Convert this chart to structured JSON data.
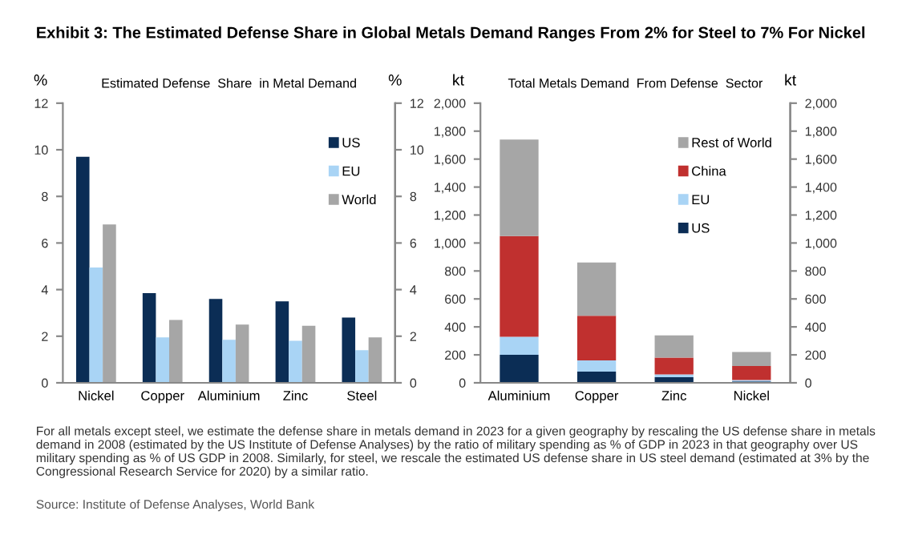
{
  "chart_data": [
    {
      "type": "bar",
      "title": "Exhibit 3: The Estimated Defense Share in Global Metals Demand Ranges From 2% for Steel to 7% For Nickel",
      "subtitle": "Estimated Defense  Share  in Metal Demand",
      "ylabel": "%",
      "y2label": "%",
      "categories": [
        "Nickel",
        "Copper",
        "Aluminium",
        "Zinc",
        "Steel"
      ],
      "series": [
        {
          "name": "US",
          "color": "#0b2d55",
          "values": [
            9.7,
            3.85,
            3.6,
            3.5,
            2.8
          ]
        },
        {
          "name": "EU",
          "color": "#a9d4f5",
          "values": [
            4.95,
            1.95,
            1.85,
            1.8,
            1.4
          ]
        },
        {
          "name": "World",
          "color": "#a6a6a6",
          "values": [
            6.8,
            2.7,
            2.5,
            2.45,
            1.95
          ]
        }
      ],
      "ylim": [
        0,
        12
      ],
      "yticks": [
        0,
        2,
        4,
        6,
        8,
        10,
        12
      ],
      "y2lim": [
        0,
        12
      ],
      "y2ticks": [
        0,
        2,
        4,
        6,
        8,
        10,
        12
      ],
      "legend": "top right",
      "grid": false
    },
    {
      "type": "bar",
      "stacked": true,
      "subtitle": "Total Metals Demand  From Defense  Sector",
      "ylabel": "kt",
      "y2label": "kt",
      "categories": [
        "Aluminium",
        "Copper",
        "Zinc",
        "Nickel"
      ],
      "series": [
        {
          "name": "US",
          "color": "#0b2d55",
          "values": [
            200,
            80,
            40,
            10
          ]
        },
        {
          "name": "EU",
          "color": "#a9d4f5",
          "values": [
            130,
            80,
            20,
            10
          ]
        },
        {
          "name": "China",
          "color": "#c0302f",
          "values": [
            720,
            320,
            120,
            100
          ]
        },
        {
          "name": "Rest of World",
          "color": "#a6a6a6",
          "values": [
            690,
            380,
            160,
            100
          ]
        }
      ],
      "ylim": [
        0,
        2000
      ],
      "yticks": [
        {
          "value": 0,
          "label": "0"
        },
        {
          "value": 200,
          "label": "200"
        },
        {
          "value": 400,
          "label": "400"
        },
        {
          "value": 600,
          "label": "600"
        },
        {
          "value": 800,
          "label": "800"
        },
        {
          "value": 1000,
          "label": "1,000"
        },
        {
          "value": 1200,
          "label": "1,200"
        },
        {
          "value": 1400,
          "label": "1,400"
        },
        {
          "value": 1600,
          "label": "1,600"
        },
        {
          "value": 1800,
          "label": "1,800"
        },
        {
          "value": 2000,
          "label": "2,000"
        }
      ],
      "y2lim": [
        0,
        2000
      ],
      "y2ticks": [
        {
          "value": 0,
          "label": "0"
        },
        {
          "value": 200,
          "label": "200"
        },
        {
          "value": 400,
          "label": "400"
        },
        {
          "value": 600,
          "label": "600"
        },
        {
          "value": 800,
          "label": "800"
        },
        {
          "value": 1000,
          "label": "1,000"
        },
        {
          "value": 1200,
          "label": "1,200"
        },
        {
          "value": 1400,
          "label": "1,400"
        },
        {
          "value": 1600,
          "label": "1,600"
        },
        {
          "value": 1800,
          "label": "1,800"
        },
        {
          "value": 2000,
          "label": "2,000"
        }
      ],
      "legend": "top right",
      "grid": false,
      "annotations": [
        "For all metals except steel, we estimate the defense share in metals demand in 2023 for a given geography by rescaling the US defense share in metals demand in 2008 (estimated by the US Institute of Defense Analyses) by the ratio of military spending as % of GDP in 2023 in that geography over US military spending as % of US GDP in 2008. Similarly, for steel, we rescale the estimated US defense share in US steel demand (estimated at 3% by the Congressional Research Service for 2020) by a similar ratio.",
        "Source: Institute of Defense Analyses, World Bank"
      ]
    }
  ]
}
